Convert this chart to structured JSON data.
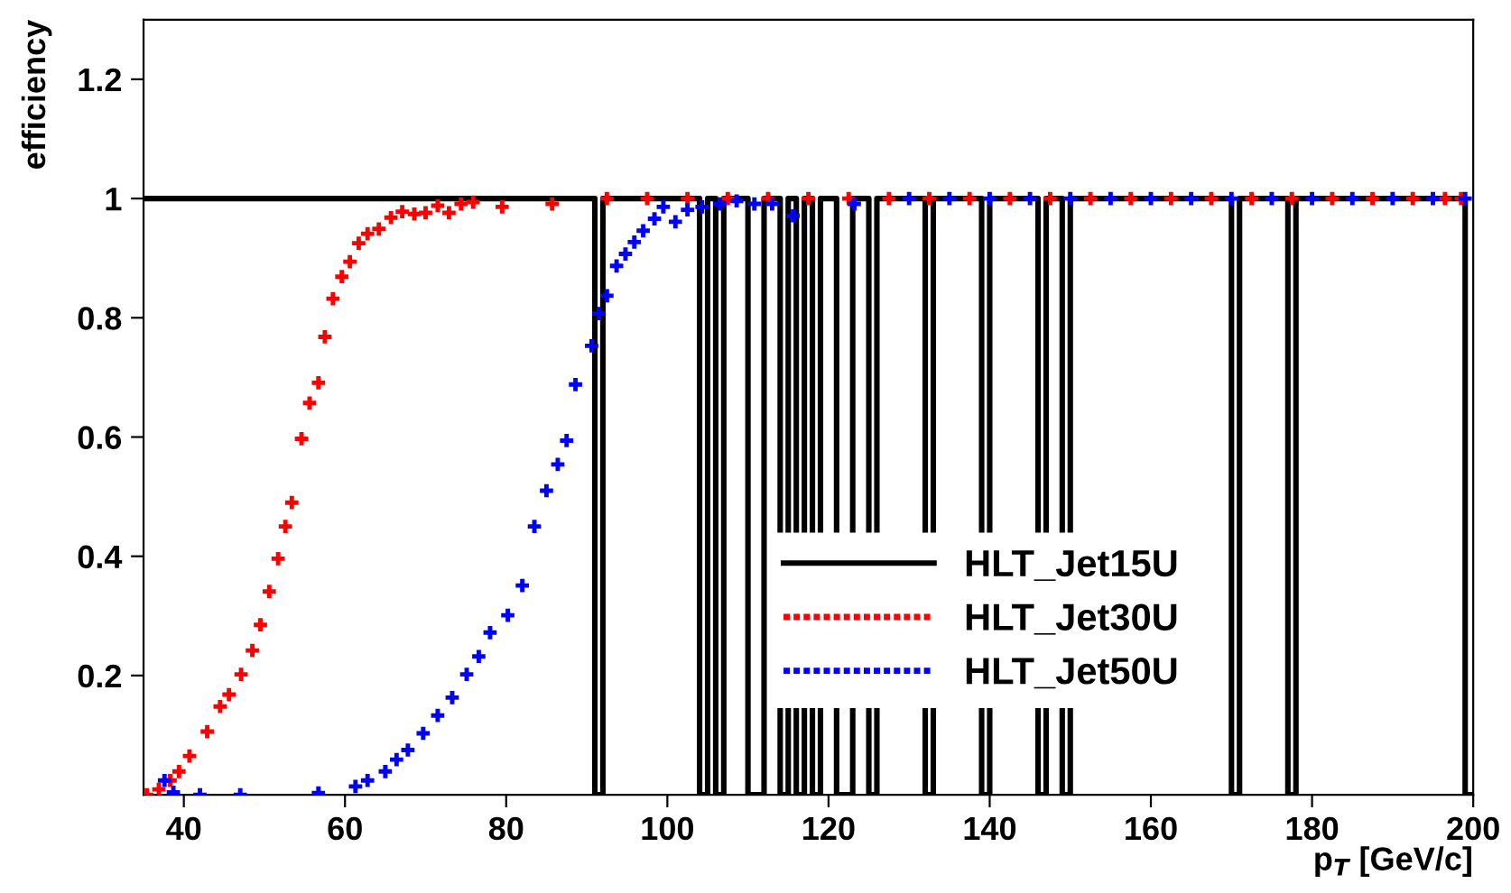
{
  "chart_data": {
    "type": "scatter",
    "xlabel": "p$_{T}$ [GeV/c]",
    "ylabel": "efficiency",
    "xlim": [
      35,
      200
    ],
    "ylim": [
      0,
      1.3
    ],
    "xticks": [
      40,
      60,
      80,
      100,
      120,
      140,
      160,
      180,
      200
    ],
    "yticks": [
      0.2,
      0.4,
      0.6,
      0.8,
      1,
      1.2
    ],
    "grid": false,
    "legend": "bottom right",
    "marker": "cross",
    "series": [
      {
        "name": "HLT_Jet15U",
        "type": "step",
        "marker": "none",
        "color": "#000000",
        "x": [
          35,
          91,
          92,
          104,
          105,
          106,
          107,
          110,
          112,
          114,
          115,
          116,
          117,
          118,
          119,
          121,
          123,
          125,
          126,
          132,
          133,
          139,
          140,
          146,
          147,
          149,
          150,
          170,
          171,
          177,
          178,
          199,
          200
        ],
        "values": [
          1,
          0,
          1,
          0,
          1,
          0,
          1,
          0,
          1,
          0,
          1,
          0,
          1,
          0,
          1,
          0,
          1,
          0,
          1,
          0,
          1,
          0,
          1,
          0,
          1,
          0,
          1,
          0,
          1,
          0,
          1,
          0,
          0
        ]
      },
      {
        "name": "HLT_Jet30U",
        "color": "#ff0000",
        "x": [
          35.4,
          36.9,
          38.3,
          39.4,
          40.7,
          42.9,
          44.5,
          45.6,
          47.1,
          48.5,
          49.5,
          50.6,
          51.7,
          52.6,
          53.4,
          54.6,
          55.6,
          56.7,
          57.5,
          58.5,
          59.6,
          60.6,
          61.7,
          62.8,
          64.2,
          65.7,
          67.1,
          68.6,
          70.0,
          71.5,
          72.9,
          74.4,
          75.9,
          79.5,
          85.7,
          92.5,
          97.5,
          102.5,
          107.5,
          112.5,
          117.5,
          122.5,
          127.5,
          132.5,
          137.5,
          142.5,
          147.5,
          152.5,
          157.5,
          162.5,
          167.5,
          172.5,
          177.5,
          182.5,
          187.5,
          192.5,
          196.5,
          198.5
        ],
        "values": [
          0,
          0.009,
          0.024,
          0.039,
          0.065,
          0.106,
          0.148,
          0.168,
          0.202,
          0.242,
          0.285,
          0.341,
          0.396,
          0.45,
          0.49,
          0.597,
          0.657,
          0.691,
          0.768,
          0.832,
          0.869,
          0.894,
          0.925,
          0.941,
          0.949,
          0.968,
          0.978,
          0.974,
          0.976,
          0.988,
          0.976,
          0.991,
          0.994,
          0.986,
          0.991,
          1,
          1,
          1,
          1,
          1,
          1,
          1,
          1,
          1,
          1,
          1,
          1,
          1,
          1,
          1,
          1,
          1,
          1,
          1,
          1,
          1,
          1,
          1
        ]
      },
      {
        "name": "HLT_Jet50U",
        "color": "#0000ff",
        "x": [
          37.6,
          38.7,
          42.0,
          47.0,
          56.7,
          61.3,
          62.8,
          65.0,
          66.4,
          67.8,
          69.7,
          71.5,
          73.3,
          75.1,
          76.6,
          78.0,
          80.2,
          82.0,
          83.5,
          85.0,
          86.4,
          87.5,
          88.6,
          90.6,
          91.5,
          92.5,
          93.7,
          94.8,
          95.9,
          97.0,
          98.4,
          99.5,
          101.0,
          102.5,
          104.3,
          106.5,
          108.6,
          110.8,
          113.0,
          115.6,
          123.2,
          130,
          135,
          140,
          145,
          150,
          155,
          160,
          165,
          170,
          175,
          180,
          185,
          190,
          195,
          199
        ],
        "values": [
          0.024,
          0.004,
          0,
          0,
          0.003,
          0.014,
          0.024,
          0.039,
          0.059,
          0.075,
          0.103,
          0.133,
          0.163,
          0.202,
          0.232,
          0.272,
          0.301,
          0.351,
          0.45,
          0.51,
          0.554,
          0.594,
          0.688,
          0.753,
          0.807,
          0.837,
          0.887,
          0.907,
          0.927,
          0.946,
          0.966,
          0.986,
          0.961,
          0.981,
          0.986,
          0.991,
          0.996,
          0.991,
          0.991,
          0.971,
          0.991,
          1,
          1,
          1,
          1,
          1,
          1,
          1,
          1,
          1,
          1,
          1,
          1,
          1,
          1,
          1
        ]
      }
    ]
  }
}
